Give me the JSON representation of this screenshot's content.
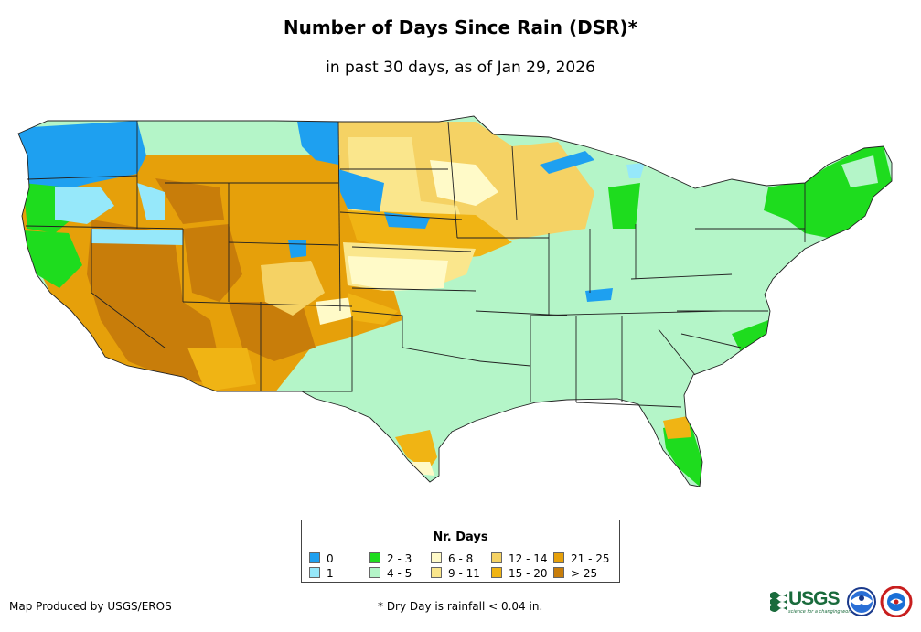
{
  "title": "Number of Days Since Rain (DSR)*",
  "subtitle": "in past 30 days, as of Jan 29, 2026",
  "legend": {
    "title": "Nr. Days",
    "items": [
      {
        "label": "0",
        "color": "#1ea0f0"
      },
      {
        "label": "1",
        "color": "#96e8fa"
      },
      {
        "label": "2 - 3",
        "color": "#1edc1e"
      },
      {
        "label": "4 - 5",
        "color": "#b4f5c8"
      },
      {
        "label": "6 - 8",
        "color": "#fffac8"
      },
      {
        "label": "9 - 11",
        "color": "#fae68c"
      },
      {
        "label": "12 - 14",
        "color": "#f5d264"
      },
      {
        "label": "15 - 20",
        "color": "#f0b414"
      },
      {
        "label": "21 - 25",
        "color": "#e6a00a"
      },
      {
        "label": "> 25",
        "color": "#c87d0a"
      }
    ]
  },
  "footer": {
    "producer": "Map Produced by USGS/EROS",
    "note": "* Dry Day is rainfall < 0.04 in."
  },
  "logos": {
    "usgs": "USGS",
    "usgs_tagline": "science for a changing world",
    "noaa": "NOAA",
    "nws": "NWS"
  }
}
